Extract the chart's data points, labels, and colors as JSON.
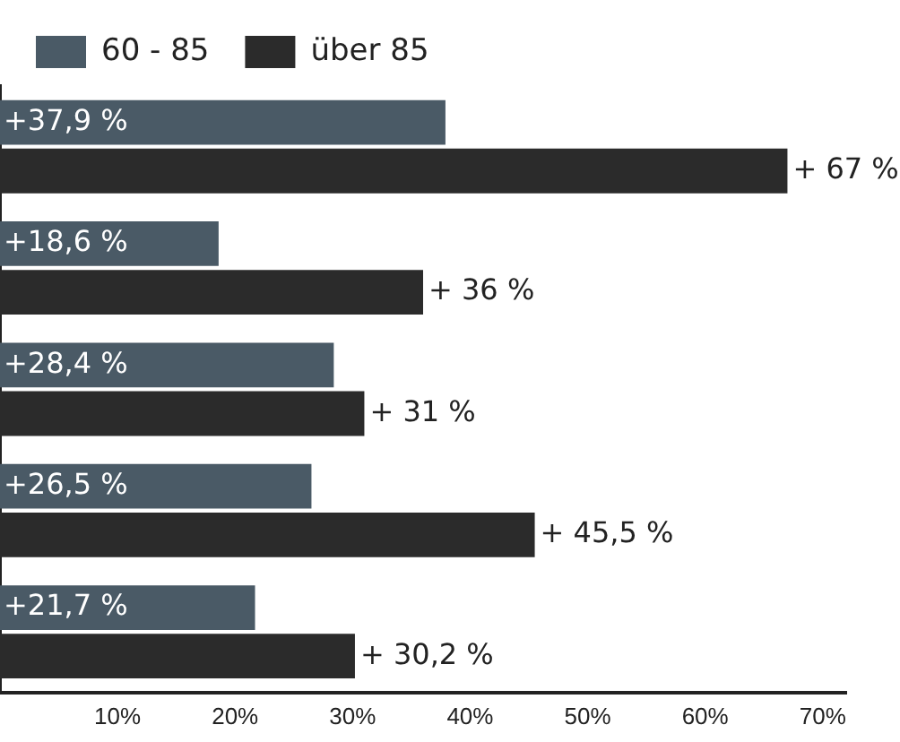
{
  "chart_data": {
    "type": "bar",
    "orientation": "horizontal",
    "categories": [
      null,
      null,
      null,
      null,
      null
    ],
    "series": [
      {
        "name": "60 - 85",
        "color": "#4a5a66",
        "values": [
          37.9,
          18.6,
          28.4,
          26.5,
          21.7
        ],
        "value_labels": [
          "+37,9 %",
          "+18,6 %",
          "+28,4 %",
          "+26,5 %",
          "+21,7 %"
        ]
      },
      {
        "name": "über 85",
        "color": "#2b2b2b",
        "values": [
          67,
          36,
          31,
          45.5,
          30.2
        ],
        "value_labels": [
          "+ 67 %",
          "+ 36 %",
          "+ 31 %",
          "+ 45,5 %",
          "+ 30,2 %"
        ]
      }
    ],
    "xlim": [
      0,
      72
    ],
    "xticks": [
      {
        "value": 10,
        "label": "10%"
      },
      {
        "value": 20,
        "label": "20%"
      },
      {
        "value": 30,
        "label": "30%"
      },
      {
        "value": 40,
        "label": "40%"
      },
      {
        "value": 50,
        "label": "50%"
      },
      {
        "value": 60,
        "label": "60%"
      },
      {
        "value": 70,
        "label": "70%"
      }
    ],
    "grid": false,
    "legend": "top left"
  }
}
